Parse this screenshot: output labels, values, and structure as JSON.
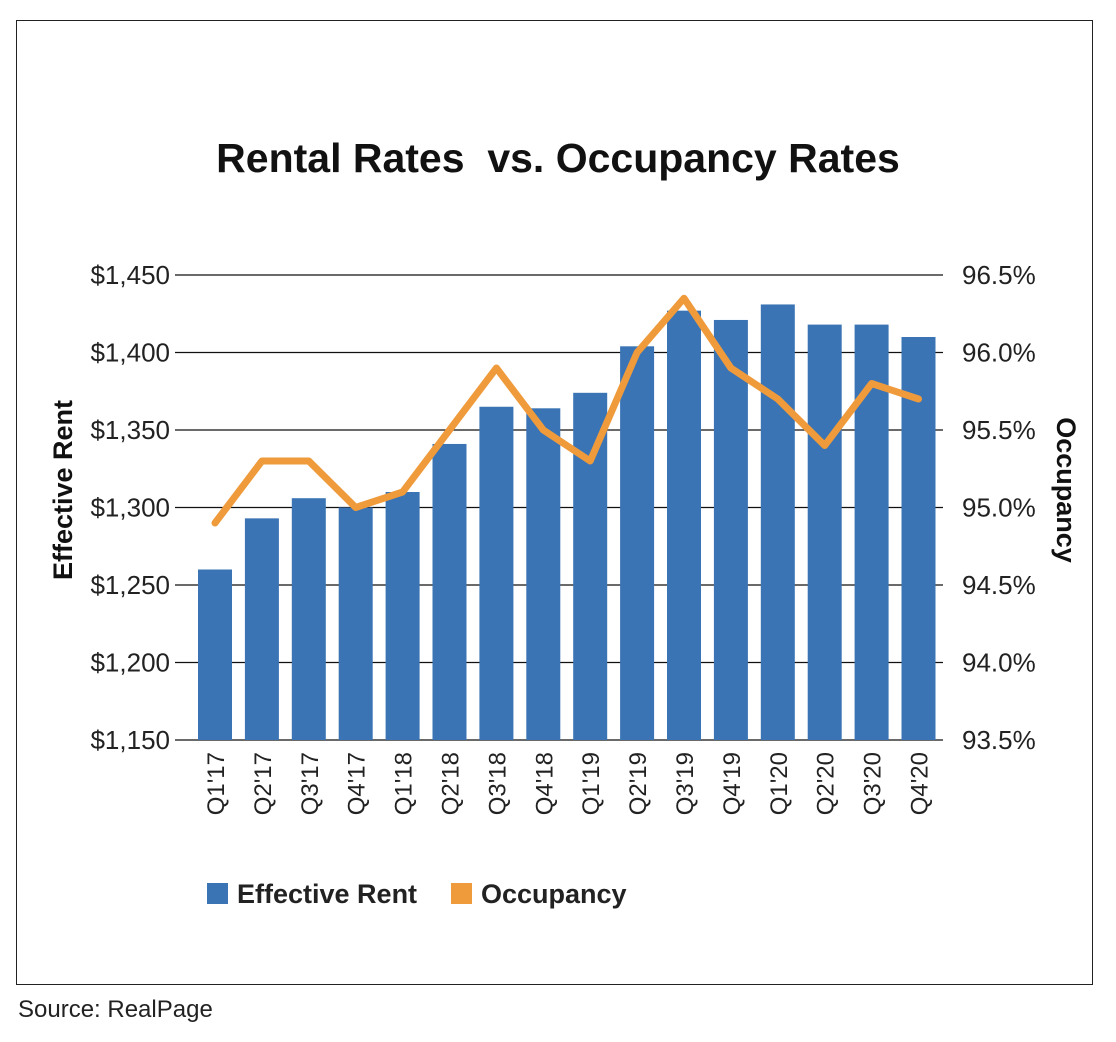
{
  "chart_data": {
    "type": "bar",
    "title": "Rental Rates  vs. Occupancy Rates",
    "categories": [
      "Q1'17",
      "Q2'17",
      "Q3'17",
      "Q4'17",
      "Q1'18",
      "Q2'18",
      "Q3'18",
      "Q4'18",
      "Q1'19",
      "Q2'19",
      "Q3'19",
      "Q4'19",
      "Q1'20",
      "Q2'20",
      "Q3'20",
      "Q4'20"
    ],
    "ylabel": "Effective Rent",
    "y2label": "Occupancy",
    "ylim": [
      1150,
      1450
    ],
    "y2lim": [
      93.5,
      96.5
    ],
    "y_ticks": [
      "$1,150",
      "$1,200",
      "$1,250",
      "$1,300",
      "$1,350",
      "$1,400",
      "$1,450"
    ],
    "y2_ticks": [
      "93.5%",
      "94.0%",
      "94.5%",
      "95.0%",
      "95.5%",
      "96.0%",
      "96.5%"
    ],
    "grid": true,
    "legend_position": "bottom",
    "series": [
      {
        "name": "Effective Rent",
        "type": "bar",
        "axis": "left",
        "color": "#3a74b5",
        "values": [
          1260,
          1293,
          1306,
          1300,
          1310,
          1341,
          1365,
          1364,
          1374,
          1404,
          1427,
          1421,
          1431,
          1418,
          1418,
          1410
        ]
      },
      {
        "name": "Occupancy",
        "type": "line",
        "axis": "right",
        "color": "#ef9a3b",
        "values": [
          94.9,
          95.3,
          95.3,
          95.0,
          95.1,
          95.5,
          95.9,
          95.5,
          95.3,
          96.0,
          96.35,
          95.9,
          95.7,
          95.4,
          95.8,
          95.7
        ]
      }
    ]
  },
  "source": "Source: RealPage"
}
